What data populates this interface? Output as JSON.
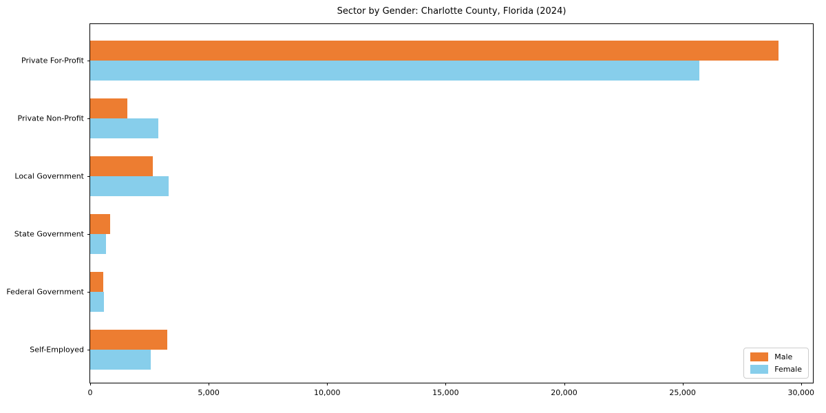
{
  "chart_data": {
    "type": "bar",
    "orientation": "horizontal",
    "title": "Sector by Gender: Charlotte County, Florida (2024)",
    "categories": [
      "Private For-Profit",
      "Private Non-Profit",
      "Local Government",
      "State Government",
      "Federal Government",
      "Self-Employed"
    ],
    "series": [
      {
        "name": "Male",
        "color": "#ED7D31",
        "values": [
          29050,
          1570,
          2630,
          850,
          550,
          3255
        ]
      },
      {
        "name": "Female",
        "color": "#87CEEB",
        "values": [
          25700,
          2870,
          3300,
          660,
          580,
          2560
        ]
      }
    ],
    "xlabel": "",
    "ylabel": "",
    "xlim": [
      0,
      30500
    ],
    "xticks": [
      0,
      5000,
      10000,
      15000,
      20000,
      25000,
      30000
    ],
    "xtick_labels": [
      "0",
      "5,000",
      "10,000",
      "15,000",
      "20,000",
      "25,000",
      "30,000"
    ],
    "grid": false,
    "legend_position": "lower right",
    "frame_color": "#000000",
    "background_color": "#ffffff"
  }
}
